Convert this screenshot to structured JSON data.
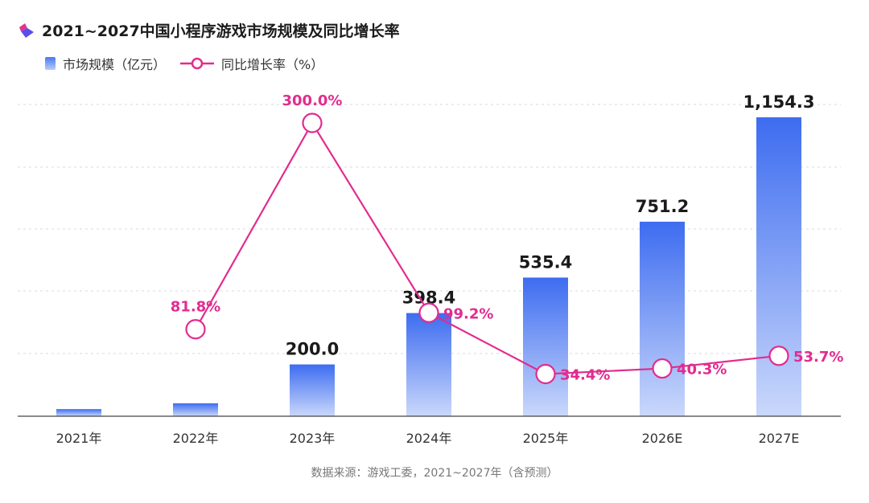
{
  "title": "2021~2027中国小程序游戏市场规模及同比增长率",
  "legend": {
    "bar_label": "市场规模（亿元）",
    "line_label": "同比增长率（%）"
  },
  "source": "数据来源：游戏工委，2021~2027年（含预测）",
  "colors": {
    "bar_top": "#3d6cf0",
    "bar_bottom": "#cad8fb",
    "line": "#e22c8f",
    "logo_top": "#e0338f",
    "logo_bottom": "#5b4fe8"
  },
  "chart_data": {
    "type": "bar",
    "categories": [
      "2021年",
      "2022年",
      "2023年",
      "2024年",
      "2025年",
      "2026E",
      "2027E"
    ],
    "series": [
      {
        "name": "市场规模（亿元）",
        "type": "bar",
        "values": [
          27.5,
          50.0,
          200.0,
          398.4,
          535.4,
          751.2,
          1154.3
        ],
        "labels": [
          "",
          "",
          "200.0",
          "398.4",
          "535.4",
          "751.2",
          "1,154.3"
        ]
      },
      {
        "name": "同比增长率（%）",
        "type": "line",
        "values": [
          null,
          81.8,
          300.0,
          99.2,
          34.4,
          40.3,
          53.7
        ],
        "labels": [
          "",
          "81.8%",
          "300.0%",
          "99.2%",
          "34.4%",
          "40.3%",
          "53.7%"
        ]
      }
    ],
    "grid": true,
    "legend_position": "top-left"
  }
}
